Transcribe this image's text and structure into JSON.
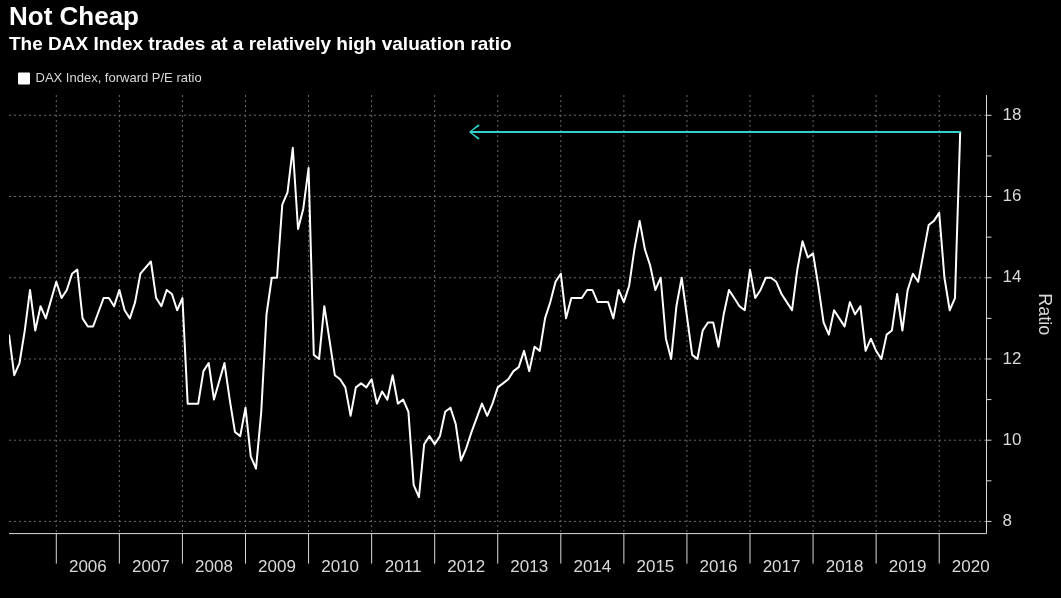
{
  "chart_data": {
    "type": "line",
    "title": "Not Cheap",
    "subtitle": "The DAX Index trades at a relatively high valuation ratio",
    "ylabel": "Ratio",
    "legend": "top left",
    "marker": "none",
    "grid": true,
    "xlim": [
      "2005-04",
      "2020-10"
    ],
    "ylim": [
      7.7,
      18.5
    ],
    "xticks": [
      {
        "value": "2006-01",
        "label": null
      },
      {
        "value": "2006-07",
        "label": "2006"
      },
      {
        "value": "2007-01",
        "label": null
      },
      {
        "value": "2007-07",
        "label": "2007"
      },
      {
        "value": "2008-01",
        "label": null
      },
      {
        "value": "2008-07",
        "label": "2008"
      },
      {
        "value": "2009-01",
        "label": null
      },
      {
        "value": "2009-07",
        "label": "2009"
      },
      {
        "value": "2010-01",
        "label": null
      },
      {
        "value": "2010-07",
        "label": "2010"
      },
      {
        "value": "2011-01",
        "label": null
      },
      {
        "value": "2011-07",
        "label": "2011"
      },
      {
        "value": "2012-01",
        "label": null
      },
      {
        "value": "2012-07",
        "label": "2012"
      },
      {
        "value": "2013-01",
        "label": null
      },
      {
        "value": "2013-07",
        "label": "2013"
      },
      {
        "value": "2014-01",
        "label": null
      },
      {
        "value": "2014-07",
        "label": "2014"
      },
      {
        "value": "2015-01",
        "label": null
      },
      {
        "value": "2015-07",
        "label": "2015"
      },
      {
        "value": "2016-01",
        "label": null
      },
      {
        "value": "2016-07",
        "label": "2016"
      },
      {
        "value": "2017-01",
        "label": null
      },
      {
        "value": "2017-07",
        "label": "2017"
      },
      {
        "value": "2018-01",
        "label": null
      },
      {
        "value": "2018-07",
        "label": "2018"
      },
      {
        "value": "2019-01",
        "label": null
      },
      {
        "value": "2019-07",
        "label": "2019"
      },
      {
        "value": "2020-01",
        "label": null
      },
      {
        "value": "2020-07",
        "label": "2020"
      }
    ],
    "yticks": [
      8,
      {
        "value": 9,
        "label": null
      },
      10,
      {
        "value": 11,
        "label": null
      },
      12,
      {
        "value": 13,
        "label": null
      },
      14,
      {
        "value": 15,
        "label": null
      },
      16,
      {
        "value": 17,
        "label": null
      },
      18
    ],
    "series": [
      {
        "name": "DAX Index, forward P/E ratio",
        "color": "#ffffff",
        "x": [
          "2005-04",
          "2005-05",
          "2005-06",
          "2005-07",
          "2005-08",
          "2005-09",
          "2005-10",
          "2005-11",
          "2006-01",
          "2006-02",
          "2006-03",
          "2006-04",
          "2006-05",
          "2006-06",
          "2006-07",
          "2006-08",
          "2006-10",
          "2006-11",
          "2006-12",
          "2007-01",
          "2007-02",
          "2007-03",
          "2007-04",
          "2007-05",
          "2007-07",
          "2007-08",
          "2007-09",
          "2007-10",
          "2007-11",
          "2007-12",
          "2008-01",
          "2008-02",
          "2008-03",
          "2008-04",
          "2008-05",
          "2008-06",
          "2008-07",
          "2008-09",
          "2008-10",
          "2008-11",
          "2008-12",
          "2009-01",
          "2009-02",
          "2009-03",
          "2009-04",
          "2009-05",
          "2009-06",
          "2009-07",
          "2009-08",
          "2009-09",
          "2009-10",
          "2009-11",
          "2009-12",
          "2010-01",
          "2010-02",
          "2010-03",
          "2010-04",
          "2010-06",
          "2010-07",
          "2010-08",
          "2010-09",
          "2010-10",
          "2010-11",
          "2010-12",
          "2011-01",
          "2011-02",
          "2011-03",
          "2011-04",
          "2011-05",
          "2011-06",
          "2011-07",
          "2011-08",
          "2011-09",
          "2011-10",
          "2011-11",
          "2011-12",
          "2012-01",
          "2012-02",
          "2012-03",
          "2012-04",
          "2012-05",
          "2012-06",
          "2012-07",
          "2012-08",
          "2012-10",
          "2012-11",
          "2012-12",
          "2013-01",
          "2013-02",
          "2013-03",
          "2013-04",
          "2013-05",
          "2013-06",
          "2013-07",
          "2013-08",
          "2013-09",
          "2013-10",
          "2013-11",
          "2013-12",
          "2014-01",
          "2014-02",
          "2014-03",
          "2014-04",
          "2014-05",
          "2014-06",
          "2014-07",
          "2014-08",
          "2014-09",
          "2014-10",
          "2014-11",
          "2014-12",
          "2015-01",
          "2015-02",
          "2015-03",
          "2015-04",
          "2015-05",
          "2015-06",
          "2015-07",
          "2015-08",
          "2015-09",
          "2015-10",
          "2015-11",
          "2015-12",
          "2016-02",
          "2016-03",
          "2016-04",
          "2016-05",
          "2016-06",
          "2016-07",
          "2016-08",
          "2016-09",
          "2016-10",
          "2016-11",
          "2016-12",
          "2017-01",
          "2017-02",
          "2017-03",
          "2017-04",
          "2017-05",
          "2017-06",
          "2017-07",
          "2017-08",
          "2017-09",
          "2017-10",
          "2017-11",
          "2017-12",
          "2018-01",
          "2018-02",
          "2018-03",
          "2018-04",
          "2018-05",
          "2018-06",
          "2018-07",
          "2018-08",
          "2018-09",
          "2018-10",
          "2018-11",
          "2018-12",
          "2019-01",
          "2019-02",
          "2019-03",
          "2019-04",
          "2019-05",
          "2019-06",
          "2019-07",
          "2019-08",
          "2019-09",
          "2019-10",
          "2019-11",
          "2019-12",
          "2020-01",
          "2020-02",
          "2020-03",
          "2020-04",
          "2020-05"
        ],
        "values": [
          12.6,
          11.6,
          11.9,
          12.7,
          13.7,
          12.7,
          13.3,
          13.0,
          13.9,
          13.5,
          13.7,
          14.1,
          14.2,
          13.0,
          12.8,
          12.8,
          13.5,
          13.5,
          13.3,
          13.7,
          13.2,
          13.0,
          13.4,
          14.1,
          14.4,
          13.5,
          13.3,
          13.7,
          13.6,
          13.2,
          13.5,
          10.9,
          10.9,
          10.9,
          11.7,
          11.9,
          11.0,
          11.9,
          11.0,
          10.2,
          10.1,
          10.8,
          9.6,
          9.3,
          10.7,
          13.1,
          14.0,
          14.0,
          15.8,
          16.1,
          17.2,
          15.2,
          15.7,
          16.7,
          12.1,
          12.0,
          13.3,
          11.6,
          11.5,
          11.3,
          10.6,
          11.3,
          11.4,
          11.3,
          11.5,
          10.9,
          11.2,
          11.0,
          11.6,
          10.9,
          11.0,
          10.7,
          8.9,
          8.6,
          9.9,
          10.1,
          9.9,
          10.1,
          10.7,
          10.8,
          10.4,
          9.5,
          9.8,
          10.2,
          10.9,
          10.6,
          10.9,
          11.3,
          11.4,
          11.5,
          11.7,
          11.8,
          12.2,
          11.7,
          12.3,
          12.2,
          13.0,
          13.4,
          13.9,
          14.1,
          13.0,
          13.5,
          13.5,
          13.5,
          13.7,
          13.7,
          13.4,
          13.4,
          13.4,
          13.0,
          13.7,
          13.4,
          13.8,
          14.7,
          15.4,
          14.7,
          14.3,
          13.7,
          14.0,
          12.5,
          12.0,
          13.3,
          14.0,
          12.1,
          12.0,
          12.7,
          12.9,
          12.9,
          12.3,
          13.1,
          13.7,
          13.5,
          13.3,
          13.2,
          14.2,
          13.5,
          13.7,
          14.0,
          14.0,
          13.9,
          13.6,
          13.4,
          13.2,
          14.2,
          14.9,
          14.5,
          14.6,
          13.8,
          12.9,
          12.6,
          13.2,
          13.0,
          12.8,
          13.4,
          13.1,
          13.3,
          12.2,
          12.5,
          12.2,
          12.0,
          12.6,
          12.7,
          13.6,
          12.7,
          13.7,
          14.1,
          13.9,
          14.6,
          15.3,
          15.4,
          15.6,
          14.0,
          13.2,
          13.5,
          17.6
        ]
      }
    ]
  }
}
